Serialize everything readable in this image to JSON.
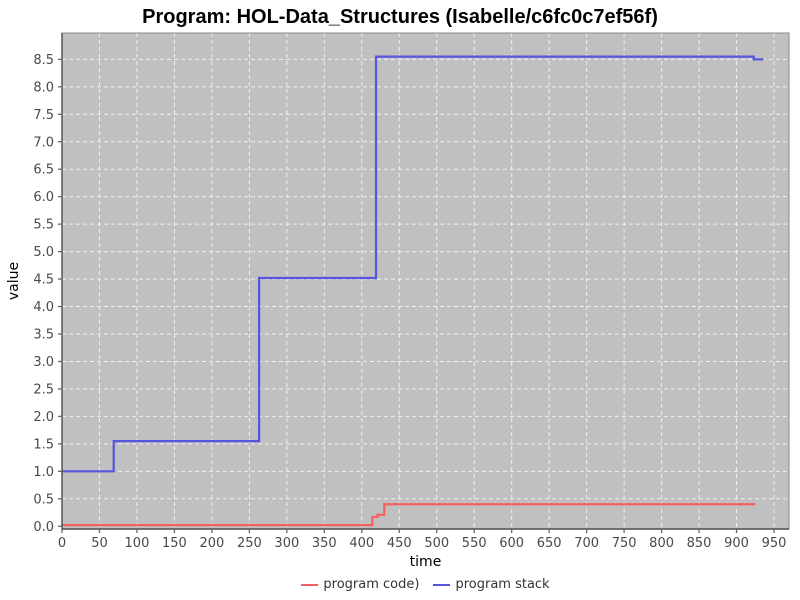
{
  "title": "Program: HOL-Data_Structures (Isabelle/c6fc0c7ef56f)",
  "colors": {
    "page_bg": "#ffffff",
    "plot_bg": "#c0c0c0",
    "grid": "#efefef",
    "plot_border": "#8a8a8a",
    "axis_line": "#4d4d4d",
    "tick_mark": "#666666",
    "tick_label": "#4a4a4a",
    "axis_label": "#000000",
    "legend_text": "#333333"
  },
  "chart_data": {
    "type": "line",
    "title": "Program: HOL-Data_Structures (Isabelle/c6fc0c7ef56f)",
    "xlabel": "time",
    "ylabel": "value",
    "xlim": [
      0,
      970
    ],
    "ylim": [
      -0.05,
      8.98
    ],
    "x_ticks": [
      0,
      50,
      100,
      150,
      200,
      250,
      300,
      350,
      400,
      450,
      500,
      550,
      600,
      650,
      700,
      750,
      800,
      850,
      900,
      950
    ],
    "y_ticks": [
      0.0,
      0.5,
      1.0,
      1.5,
      2.0,
      2.5,
      3.0,
      3.5,
      4.0,
      4.5,
      5.0,
      5.5,
      6.0,
      6.5,
      7.0,
      7.5,
      8.0,
      8.5
    ],
    "grid": true,
    "grid_style": "white-dashed",
    "legend_position": "bottom",
    "series": [
      {
        "name": "program code)",
        "color": "#f55f5f",
        "points": [
          [
            0,
            0.02
          ],
          [
            414,
            0.02
          ],
          [
            414,
            0.17
          ],
          [
            421,
            0.17
          ],
          [
            421,
            0.21
          ],
          [
            430,
            0.21
          ],
          [
            430,
            0.4
          ],
          [
            925,
            0.4
          ]
        ]
      },
      {
        "name": "program stack",
        "color": "#5555dd",
        "points": [
          [
            0,
            1.0
          ],
          [
            69,
            1.0
          ],
          [
            69,
            1.55
          ],
          [
            263,
            1.55
          ],
          [
            263,
            4.52
          ],
          [
            419,
            4.52
          ],
          [
            419,
            8.55
          ],
          [
            923,
            8.55
          ],
          [
            923,
            8.5
          ],
          [
            936,
            8.5
          ]
        ]
      }
    ]
  }
}
